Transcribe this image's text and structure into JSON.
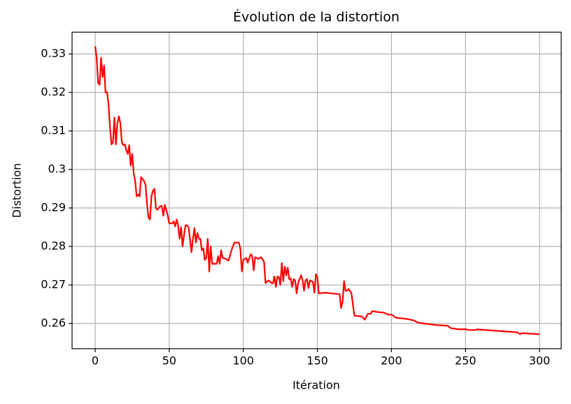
{
  "chart_data": {
    "type": "line",
    "title": "Évolution de la distortion",
    "x_label": "Itération",
    "y_label": "Distortion",
    "x": [
      0,
      1,
      2,
      3,
      4,
      5,
      6,
      7,
      8,
      9,
      10,
      11,
      12,
      13,
      14,
      15,
      16,
      17,
      18,
      19,
      20,
      21,
      22,
      23,
      24,
      25,
      26,
      27,
      28,
      29,
      30,
      31,
      32,
      33,
      34,
      35,
      36,
      37,
      38,
      39,
      40,
      41,
      42,
      43,
      44,
      45,
      46,
      47,
      48,
      49,
      50,
      52,
      53,
      54,
      55,
      56,
      57,
      58,
      59,
      60,
      61,
      62,
      63,
      64,
      65,
      66,
      67,
      68,
      69,
      70,
      71,
      72,
      73,
      74,
      75,
      76,
      77,
      78,
      79,
      80,
      82,
      83,
      84,
      85,
      86,
      88,
      90,
      92,
      94,
      97,
      98,
      99,
      100,
      102,
      103,
      105,
      106,
      107,
      108,
      110,
      112,
      114,
      115,
      117,
      119,
      120,
      121,
      122,
      123,
      124,
      125,
      126,
      127,
      128,
      129,
      130,
      131,
      132,
      133,
      134,
      135,
      136,
      137,
      139,
      140,
      141,
      142,
      143,
      144,
      145,
      147,
      148,
      149,
      150,
      151,
      155,
      165,
      166,
      167,
      168,
      169,
      170,
      171,
      173,
      175,
      180,
      182,
      184,
      186,
      187,
      188,
      190,
      195,
      198,
      200,
      203,
      210,
      215,
      218,
      222,
      230,
      238,
      240,
      245,
      250,
      252,
      257,
      258,
      260,
      285,
      287,
      288,
      300
    ],
    "series": [
      {
        "name": "Distortion",
        "color": "#ff0000",
        "values": [
          0.332,
          0.329,
          0.3225,
          0.322,
          0.329,
          0.324,
          0.327,
          0.32,
          0.32,
          0.317,
          0.311,
          0.3065,
          0.307,
          0.3135,
          0.3065,
          0.312,
          0.3138,
          0.312,
          0.307,
          0.3063,
          0.3065,
          0.305,
          0.304,
          0.3063,
          0.301,
          0.304,
          0.299,
          0.297,
          0.293,
          0.2935,
          0.293,
          0.298,
          0.2975,
          0.297,
          0.296,
          0.291,
          0.2875,
          0.287,
          0.293,
          0.2945,
          0.295,
          0.29,
          0.2895,
          0.29,
          0.2905,
          0.2905,
          0.288,
          0.2908,
          0.2895,
          0.288,
          0.286,
          0.286,
          0.2865,
          0.2852,
          0.287,
          0.2855,
          0.282,
          0.285,
          0.28,
          0.283,
          0.2855,
          0.2855,
          0.285,
          0.282,
          0.2785,
          0.282,
          0.2848,
          0.281,
          0.2835,
          0.282,
          0.282,
          0.279,
          0.2795,
          0.2765,
          0.277,
          0.282,
          0.2735,
          0.28,
          0.2755,
          0.2755,
          0.2755,
          0.2775,
          0.2755,
          0.279,
          0.277,
          0.2768,
          0.2763,
          0.279,
          0.281,
          0.281,
          0.2795,
          0.2735,
          0.2765,
          0.277,
          0.2758,
          0.278,
          0.2775,
          0.2738,
          0.2772,
          0.2768,
          0.2772,
          0.276,
          0.2705,
          0.2712,
          0.2705,
          0.2705,
          0.2722,
          0.2695,
          0.2722,
          0.272,
          0.27,
          0.2757,
          0.271,
          0.2748,
          0.2725,
          0.2745,
          0.2715,
          0.2717,
          0.2695,
          0.2715,
          0.2712,
          0.2678,
          0.2705,
          0.2725,
          0.2712,
          0.2685,
          0.2712,
          0.2715,
          0.2692,
          0.2712,
          0.2708,
          0.268,
          0.2728,
          0.272,
          0.2678,
          0.268,
          0.2676,
          0.264,
          0.2655,
          0.271,
          0.2685,
          0.2685,
          0.269,
          0.2678,
          0.262,
          0.2618,
          0.261,
          0.2625,
          0.2625,
          0.2632,
          0.2632,
          0.263,
          0.2628,
          0.2623,
          0.2623,
          0.2615,
          0.2612,
          0.2608,
          0.2602,
          0.26,
          0.2596,
          0.2594,
          0.2588,
          0.2585,
          0.2585,
          0.2583,
          0.2583,
          0.2585,
          0.2584,
          0.2577,
          0.2572,
          0.2575,
          0.2572
        ]
      }
    ],
    "xlim": [
      -15.6,
      314.6
    ],
    "xticks": [
      0,
      50,
      100,
      150,
      200,
      250,
      300
    ],
    "ylim": [
      0.25345,
      0.33564
    ],
    "yticks": [
      0.26,
      0.27,
      0.28,
      0.29,
      0.3,
      0.31,
      0.32,
      0.33
    ],
    "grid": true
  }
}
